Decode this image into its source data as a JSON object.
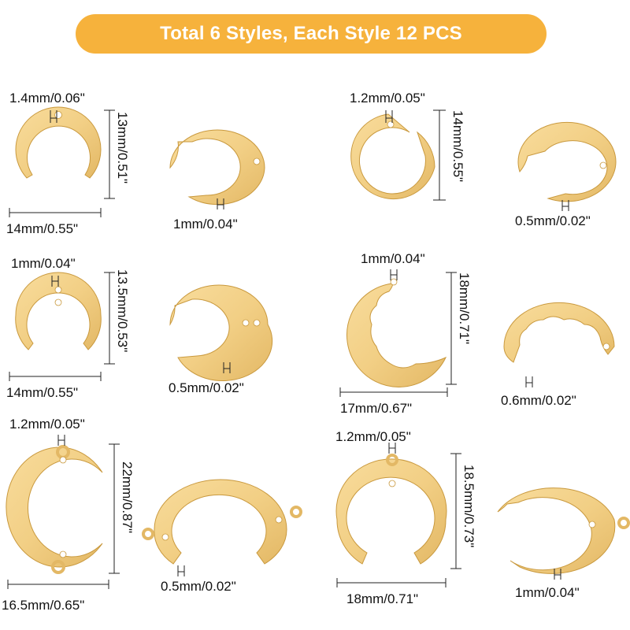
{
  "banner": {
    "text": "Total 6 Styles, Each Style 12 PCS",
    "color": "#f6b23c"
  },
  "colors": {
    "gold_fill": "#f2cf85",
    "gold_edge": "#c9993e",
    "dimension_line": "#222222"
  },
  "styles": [
    {
      "thickness": "1.4mm/0.06\"",
      "height": "13mm/0.51\"",
      "width": "14mm/0.55\"",
      "detail": "1mm/0.04\""
    },
    {
      "thickness": "1.2mm/0.05\"",
      "height": "14mm/0.55\"",
      "detail": "0.5mm/0.02\""
    },
    {
      "thickness": "1mm/0.04\"",
      "height": "13.5mm/0.53\"",
      "width": "14mm/0.55\"",
      "detail": "0.5mm/0.02\""
    },
    {
      "thickness": "1mm/0.04\"",
      "height": "18mm/0.71\"",
      "width": "17mm/0.67\"",
      "detail": "0.6mm/0.02\""
    },
    {
      "thickness": "1.2mm/0.05\"",
      "height": "22mm/0.87\"",
      "width": "16.5mm/0.65\"",
      "detail": "0.5mm/0.02\""
    },
    {
      "thickness": "1.2mm/0.05\"",
      "height": "18.5mm/0.73\"",
      "width": "18mm/0.71\"",
      "detail": "1mm/0.04\""
    }
  ]
}
